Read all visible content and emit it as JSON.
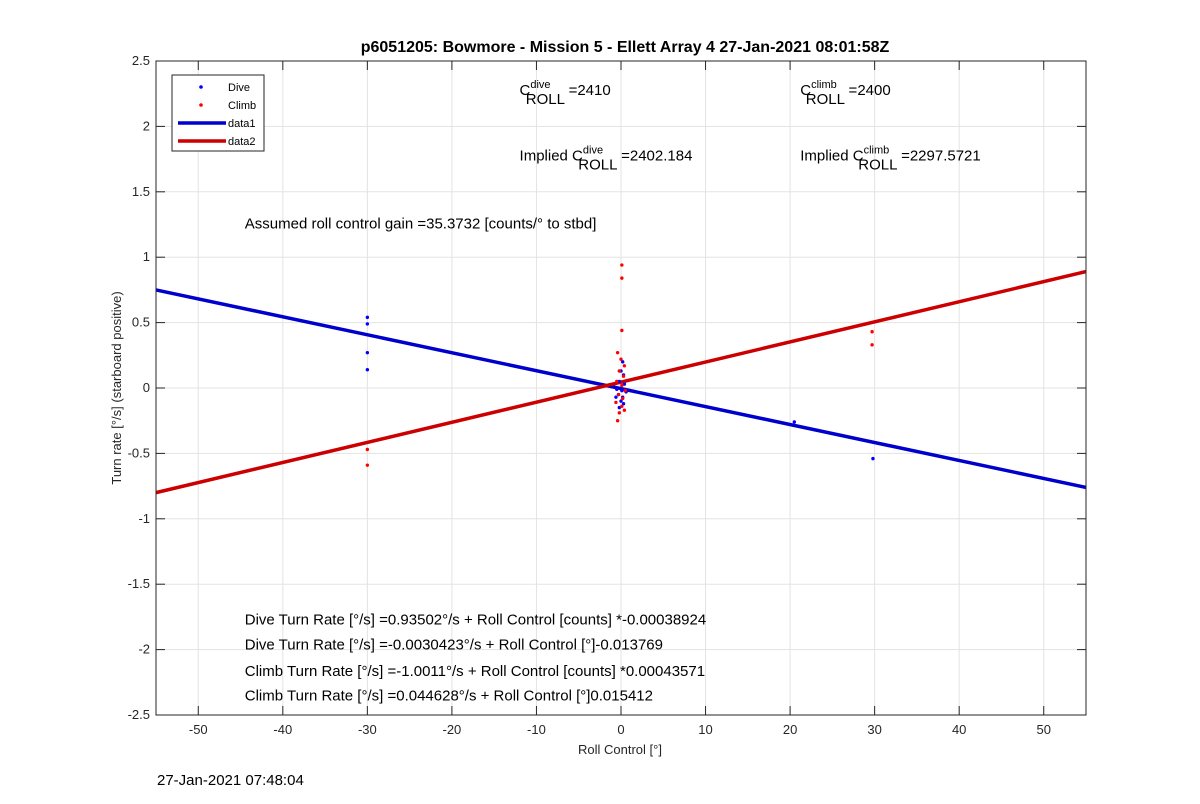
{
  "chart_data": {
    "type": "scatter",
    "title": "p6051205: Bowmore - Mission 5 - Ellett Array 4 27-Jan-2021 08:01:58Z",
    "xlabel": "Roll Control [°]",
    "ylabel": "Turn rate [°/s] (starboard positive)",
    "xlim": [
      -55,
      55
    ],
    "ylim": [
      -2.5,
      2.5
    ],
    "xticks": [
      -50,
      -40,
      -30,
      -20,
      -10,
      0,
      10,
      20,
      30,
      40,
      50
    ],
    "yticks": [
      2.5,
      2,
      1.5,
      1,
      0.5,
      0,
      -0.5,
      -1,
      -1.5,
      -2,
      -2.5
    ],
    "grid": true,
    "legend_position": "top-left",
    "series": [
      {
        "name": "Dive",
        "kind": "points",
        "color": "#0000ff",
        "points": [
          [
            -30,
            0.54
          ],
          [
            -30,
            0.49
          ],
          [
            -30,
            0.27
          ],
          [
            -30,
            0.14
          ],
          [
            0.2,
            0.2
          ],
          [
            0,
            0.13
          ],
          [
            0.3,
            0.1
          ],
          [
            -0.2,
            0.05
          ],
          [
            0.4,
            0.03
          ],
          [
            -0.5,
            -0.01
          ],
          [
            0.1,
            -0.02
          ],
          [
            0.6,
            -0.03
          ],
          [
            -0.3,
            -0.05
          ],
          [
            0.2,
            -0.07
          ],
          [
            -0.6,
            -0.07
          ],
          [
            0,
            -0.1
          ],
          [
            0.3,
            -0.12
          ],
          [
            -0.2,
            -0.15
          ],
          [
            20.5,
            -0.26
          ],
          [
            29.8,
            -0.54
          ]
        ]
      },
      {
        "name": "Climb",
        "kind": "points",
        "color": "#ff0000",
        "points": [
          [
            -30,
            -0.47
          ],
          [
            -30,
            -0.59
          ],
          [
            0.1,
            0.94
          ],
          [
            0.1,
            0.84
          ],
          [
            0.1,
            0.44
          ],
          [
            -0.4,
            0.27
          ],
          [
            0,
            0.22
          ],
          [
            0.4,
            0.17
          ],
          [
            -0.2,
            0.13
          ],
          [
            0.3,
            0.09
          ],
          [
            -0.5,
            0.05
          ],
          [
            0.1,
            0.02
          ],
          [
            0.5,
            -0.02
          ],
          [
            -0.3,
            -0.05
          ],
          [
            0.2,
            -0.08
          ],
          [
            -0.6,
            -0.11
          ],
          [
            0.1,
            -0.14
          ],
          [
            0.4,
            -0.17
          ],
          [
            -0.2,
            -0.19
          ],
          [
            -0.4,
            -0.25
          ],
          [
            29.7,
            0.43
          ],
          [
            29.7,
            0.33
          ]
        ]
      },
      {
        "name": "data1",
        "kind": "line",
        "color": "#0000cc",
        "x": [
          -55,
          55
        ],
        "values": [
          0.75,
          -0.76
        ]
      },
      {
        "name": "data2",
        "kind": "line",
        "color": "#cc0000",
        "x": [
          -55,
          55
        ],
        "values": [
          -0.8,
          0.89
        ]
      }
    ],
    "annotations": [
      {
        "prefix": "C",
        "sup": "dive",
        "sub": "ROLL",
        "suffix": " =2410",
        "x": -12.0,
        "y": 2.24
      },
      {
        "prefix": "C",
        "sup": "climb",
        "sub": "ROLL",
        "suffix": " =2400",
        "x": 21.2,
        "y": 2.24
      },
      {
        "prefix": "Implied C",
        "sup": "dive",
        "sub": "ROLL",
        "suffix": " =2402.184",
        "x": -12.0,
        "y": 1.74
      },
      {
        "prefix": "Implied C",
        "sup": "climb",
        "sub": "ROLL",
        "suffix": " =2297.5721",
        "x": 21.2,
        "y": 1.74
      }
    ],
    "notes": [
      {
        "text": "Assumed roll control gain =35.3732 [counts/° to stbd]",
        "x": -44.5,
        "y": 1.22
      },
      {
        "text": "Dive Turn Rate [°/s] =0.93502°/s + Roll Control [counts] *-0.00038924",
        "x": -44.5,
        "y": -1.81
      },
      {
        "text": "Dive Turn Rate [°/s] =-0.0030423°/s + Roll Control [°]-0.013769",
        "x": -44.5,
        "y": -2.0
      },
      {
        "text": "Climb Turn Rate [°/s] =-1.0011°/s + Roll Control [counts] *0.00043571",
        "x": -44.5,
        "y": -2.2
      },
      {
        "text": "Climb Turn Rate [°/s] =0.044628°/s + Roll Control [°]0.015412",
        "x": -44.5,
        "y": -2.39
      }
    ]
  },
  "footer": {
    "timestamp": "27-Jan-2021 07:48:04"
  }
}
